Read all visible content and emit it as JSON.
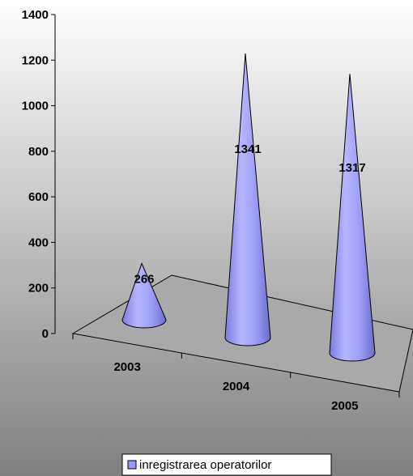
{
  "chart_data": {
    "type": "bar",
    "style": "3d-cone",
    "categories": [
      "2003",
      "2004",
      "2005"
    ],
    "series": [
      {
        "name": "inregistrarea operatorilor",
        "values": [
          266,
          1341,
          1317
        ]
      }
    ],
    "data_labels": [
      "266",
      "1341",
      "1317"
    ],
    "y_ticks": [
      "0",
      "200",
      "400",
      "600",
      "800",
      "1000",
      "1200",
      "1400"
    ],
    "ylim": [
      0,
      1400
    ],
    "grid": false,
    "legend_position": "bottom",
    "colors": {
      "cone_fill": "#9999ff",
      "cone_dark": "#6f6fd6",
      "floor": "#a9a9a9",
      "background_top": "#ffffff",
      "background_bottom": "#808080"
    }
  }
}
